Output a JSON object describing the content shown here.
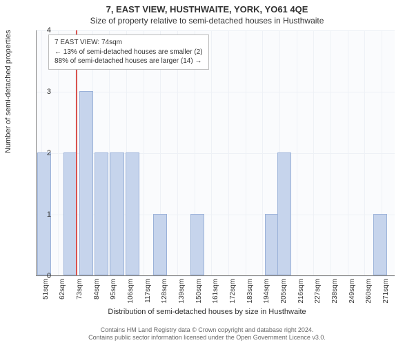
{
  "title": "7, EAST VIEW, HUSTHWAITE, YORK, YO61 4QE",
  "subtitle": "Size of property relative to semi-detached houses in Husthwaite",
  "chart": {
    "type": "histogram",
    "ylabel": "Number of semi-detached properties",
    "xlabel": "Distribution of semi-detached houses by size in Husthwaite",
    "ylim": [
      0,
      4
    ],
    "yticks": [
      0,
      1,
      2,
      3,
      4
    ],
    "bar_color": "#c6d4ec",
    "bar_border": "#9ab1d8",
    "grid_color": "#eef1f6",
    "background_color": "#fafbfd",
    "highlight_sqm": 74,
    "highlight_color": "#d9534f",
    "x_tick_start": 51,
    "x_tick_step": 11,
    "x_tick_count": 21,
    "x_min": 48,
    "x_max": 280,
    "bars": [
      {
        "x_center": 53,
        "count": 2
      },
      {
        "x_center": 70,
        "count": 2
      },
      {
        "x_center": 80,
        "count": 3
      },
      {
        "x_center": 90,
        "count": 2
      },
      {
        "x_center": 100,
        "count": 2
      },
      {
        "x_center": 110,
        "count": 2
      },
      {
        "x_center": 128,
        "count": 1
      },
      {
        "x_center": 152,
        "count": 1
      },
      {
        "x_center": 200,
        "count": 1
      },
      {
        "x_center": 208,
        "count": 2
      },
      {
        "x_center": 270,
        "count": 1
      }
    ],
    "bar_width_sqm": 9
  },
  "annotation": {
    "line1": "7 EAST VIEW: 74sqm",
    "line2": "← 13% of semi-detached houses are smaller (2)",
    "line3": "88% of semi-detached houses are larger (14) →"
  },
  "footer": {
    "line1": "Contains HM Land Registry data © Crown copyright and database right 2024.",
    "line2": "Contains public sector information licensed under the Open Government Licence v3.0."
  }
}
